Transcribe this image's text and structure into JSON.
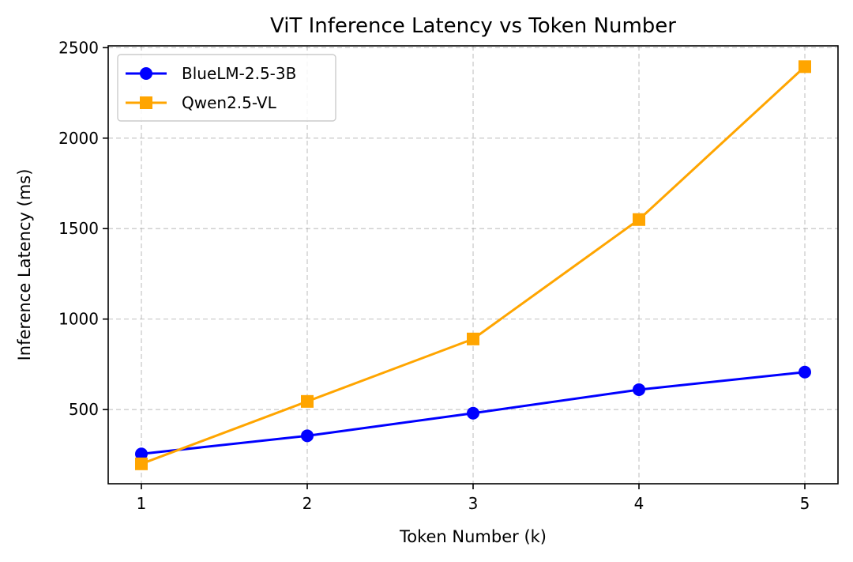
{
  "chart_data": {
    "type": "line",
    "title": "ViT Inference Latency vs Token Number",
    "xlabel": "Token Number (k)",
    "ylabel": "Inference Latency (ms)",
    "x": [
      1,
      2,
      3,
      4,
      5
    ],
    "xlim": [
      0.8,
      5.2
    ],
    "ylim": [
      90,
      2510
    ],
    "xticks": [
      "1",
      "2",
      "3",
      "4",
      "5"
    ],
    "yticks": [
      "500",
      "1000",
      "1500",
      "2000",
      "2500"
    ],
    "grid": true,
    "legend_position": "upper-left",
    "series": [
      {
        "name": "BlueLM-2.5-3B",
        "color": "#0000ff",
        "marker": "circle",
        "values": [
          255,
          355,
          480,
          610,
          707
        ]
      },
      {
        "name": "Qwen2.5-VL",
        "color": "#ffa500",
        "marker": "square",
        "values": [
          200,
          545,
          890,
          1550,
          2395
        ]
      }
    ]
  }
}
